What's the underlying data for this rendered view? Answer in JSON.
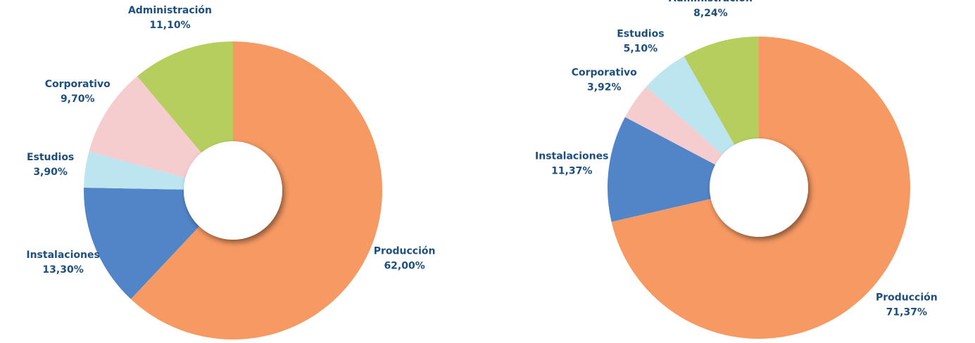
{
  "chart_data": [
    {
      "type": "donut",
      "categories": [
        "Producción",
        "Instalaciones",
        "Estudios",
        "Corporativo",
        "Administración"
      ],
      "values": [
        62.0,
        13.3,
        3.9,
        9.7,
        11.1
      ],
      "value_labels": [
        "62,00%",
        "13,30%",
        "3,90%",
        "9,70%",
        "11,10%"
      ],
      "colors": [
        "#f79963",
        "#5285c7",
        "#bce5f0",
        "#f6cdcf",
        "#b5ce5e"
      ]
    },
    {
      "type": "donut",
      "categories": [
        "Producción",
        "Instalaciones",
        "Corporativo",
        "Estudios",
        "Administración"
      ],
      "values": [
        71.37,
        11.37,
        3.92,
        5.1,
        8.24
      ],
      "value_labels": [
        "71,37%",
        "11,37%",
        "3,92%",
        "5,10%",
        "8,24%"
      ],
      "colors": [
        "#f79963",
        "#5285c7",
        "#f6cdcf",
        "#bce5f0",
        "#b5ce5e"
      ]
    }
  ]
}
